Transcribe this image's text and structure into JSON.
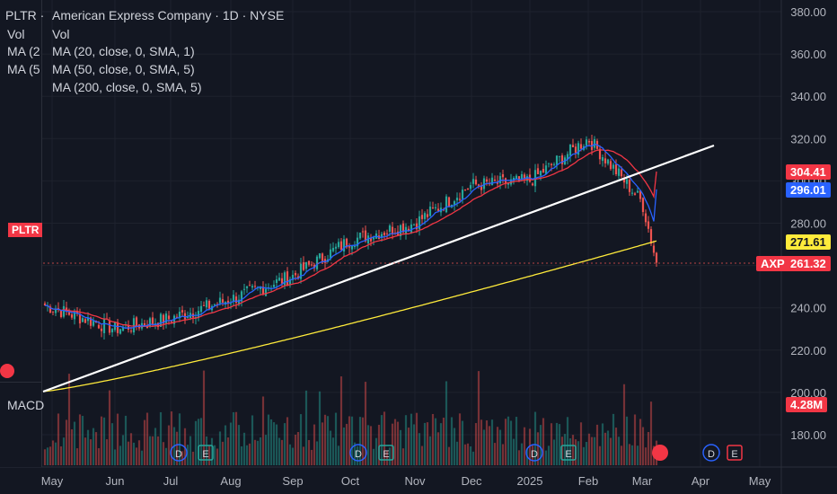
{
  "symbol_header": {
    "title": "American Express Company · 1D · NYSE",
    "vol_label": "Vol",
    "ma_labels": [
      "MA (20, close, 0, SMA, 1)",
      "MA (50, close, 0, SMA, 5)",
      "MA (200, close, 0, SMA, 5)"
    ]
  },
  "ghost_panel": {
    "lines": [
      "PLTR ·",
      "Vol",
      "MA (2",
      "MA (5"
    ],
    "pltr_tag": "PLTR",
    "macd_label": "MACD"
  },
  "colors": {
    "background": "#131722",
    "up": "#26a69a",
    "down": "#ef5350",
    "ma20": "#2962ff",
    "ma50": "#f23645",
    "ma200": "#ffeb3b",
    "trendline": "#ffffff"
  },
  "price_labels": {
    "ma50": "304.41",
    "ma20": "296.01",
    "ma200": "271.61",
    "symbol_tag": "AXP",
    "last_price": "261.32",
    "volume": "4.28M"
  },
  "event_markers": [
    "D",
    "E",
    "D",
    "E",
    "D",
    "E",
    "D",
    "E"
  ],
  "chart_data": {
    "type": "candlestick",
    "title": "American Express Company · 1D · NYSE",
    "y_axis_ticks": [
      "380.00",
      "360.00",
      "340.00",
      "320.00",
      "300.00",
      "280.00",
      "260.00",
      "240.00",
      "220.00",
      "200.00",
      "180.00"
    ],
    "ylim": [
      174,
      385
    ],
    "x_axis_ticks": [
      "May",
      "Jun",
      "Jul",
      "Aug",
      "Sep",
      "Oct",
      "Nov",
      "Dec",
      "2025",
      "Feb",
      "Mar",
      "Apr",
      "May"
    ],
    "monthly_trend": [
      {
        "month": "May",
        "close": 240
      },
      {
        "month": "Jun",
        "close": 230
      },
      {
        "month": "Jul",
        "close": 235
      },
      {
        "month": "Aug",
        "close": 244
      },
      {
        "month": "Sep",
        "close": 255
      },
      {
        "month": "Oct",
        "close": 272
      },
      {
        "month": "Nov",
        "close": 280
      },
      {
        "month": "Dec",
        "close": 298
      },
      {
        "month": "2025",
        "close": 300
      },
      {
        "month": "Feb",
        "close": 320
      },
      {
        "month": "Mar",
        "close": 290
      },
      {
        "month": "Mar end",
        "close": 261.32
      }
    ],
    "series": [
      {
        "name": "MA (20, close, 0, SMA, 1)",
        "last": 296.01
      },
      {
        "name": "MA (50, close, 0, SMA, 5)",
        "last": 304.41
      },
      {
        "name": "MA (200, close, 0, SMA, 5)",
        "last": 271.61
      }
    ],
    "last_price": 261.32,
    "last_volume": "4.28M"
  }
}
